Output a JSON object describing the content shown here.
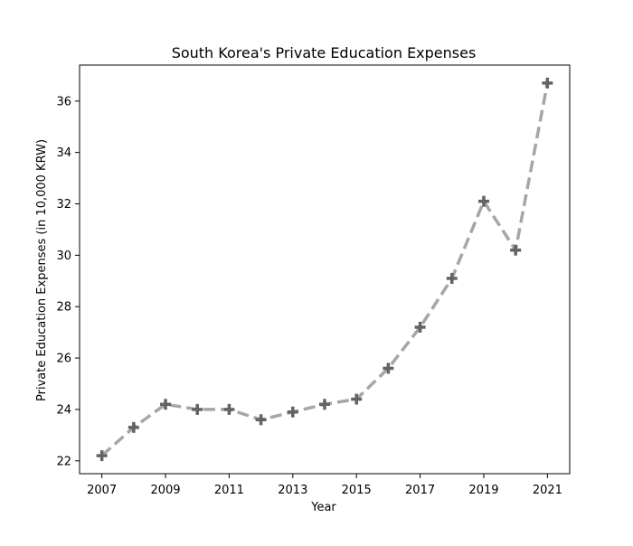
{
  "chart_data": {
    "type": "line",
    "title": "South Korea's Private Education Expenses",
    "xlabel": "Year",
    "ylabel": "Private Education Expenses (in 10,000 KRW)",
    "x": [
      2007,
      2008,
      2009,
      2010,
      2011,
      2012,
      2013,
      2014,
      2015,
      2016,
      2017,
      2018,
      2019,
      2020,
      2021
    ],
    "series": [
      {
        "values": [
          22.2,
          23.3,
          24.2,
          24.0,
          24.0,
          23.6,
          23.9,
          24.2,
          24.4,
          25.6,
          27.2,
          29.1,
          32.1,
          30.2,
          36.7
        ]
      }
    ],
    "xticks": [
      "2007",
      "2009",
      "2011",
      "2013",
      "2015",
      "2017",
      "2019",
      "2021"
    ],
    "yticks": [
      "22",
      "24",
      "26",
      "28",
      "30",
      "32",
      "34",
      "36"
    ],
    "xlim": [
      2006.3,
      2021.7
    ],
    "ylim": [
      21.5,
      37.4
    ],
    "grid": false,
    "legend": "none",
    "line_style": "dashed",
    "marker": "plus",
    "line_color": "#a6a6a6",
    "marker_color": "#636363"
  }
}
